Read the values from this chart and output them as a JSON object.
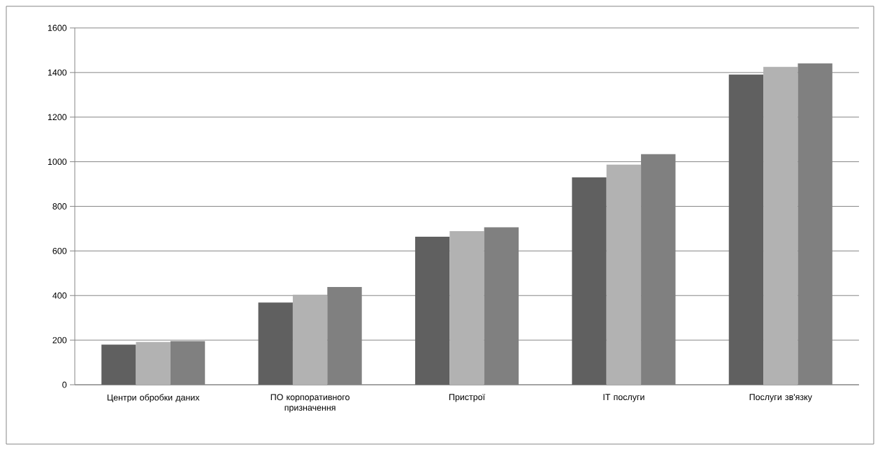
{
  "chart_data": {
    "type": "bar",
    "categories": [
      "Центри обробки даних",
      "ПО корпоративного призначення",
      "Пристрої",
      "IT послуги",
      "Послуги зв'язку"
    ],
    "series": [
      {
        "color": "#606060",
        "values": [
          180,
          369,
          664,
          930,
          1391
        ]
      },
      {
        "color": "#b2b2b2",
        "values": [
          192,
          404,
          689,
          987,
          1425
        ]
      },
      {
        "color": "#808080",
        "values": [
          196,
          438,
          706,
          1034,
          1441
        ]
      }
    ],
    "ylim": [
      0,
      1600
    ],
    "yticks": [
      0,
      200,
      400,
      600,
      800,
      1000,
      1200,
      1400,
      1600
    ],
    "grid": "y"
  }
}
